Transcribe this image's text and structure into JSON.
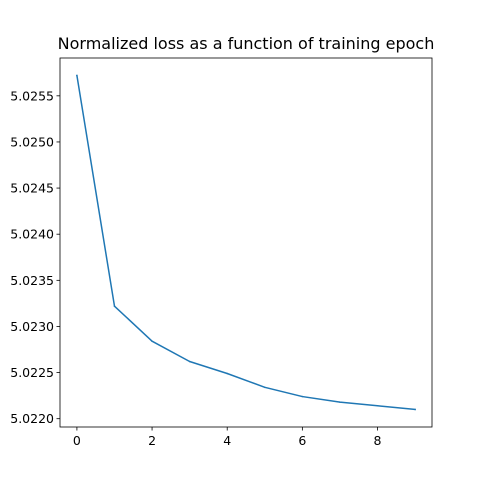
{
  "chart_data": {
    "type": "line",
    "title": "Normalized loss as a function of training epoch",
    "xlabel": "",
    "ylabel": "",
    "x": [
      0,
      1,
      2,
      3,
      4,
      5,
      6,
      7,
      8,
      9
    ],
    "series": [
      {
        "color": "#1f77b4",
        "values": [
          5.02572,
          5.02322,
          5.02284,
          5.02262,
          5.02249,
          5.02234,
          5.02224,
          5.02218,
          5.02214,
          5.0221
        ]
      }
    ],
    "xlim": [
      -0.45,
      9.45
    ],
    "ylim": [
      5.02191,
      5.02591
    ],
    "xticks": [
      0,
      2,
      4,
      6,
      8
    ],
    "xtick_labels": [
      "0",
      "2",
      "4",
      "6",
      "8"
    ],
    "yticks": [
      5.022,
      5.0225,
      5.023,
      5.0235,
      5.024,
      5.0245,
      5.025,
      5.0255
    ],
    "ytick_labels": [
      "5.0220",
      "5.0225",
      "5.0230",
      "5.0235",
      "5.0240",
      "5.0245",
      "5.0250",
      "5.0255"
    ],
    "grid": false,
    "legend": "none"
  }
}
